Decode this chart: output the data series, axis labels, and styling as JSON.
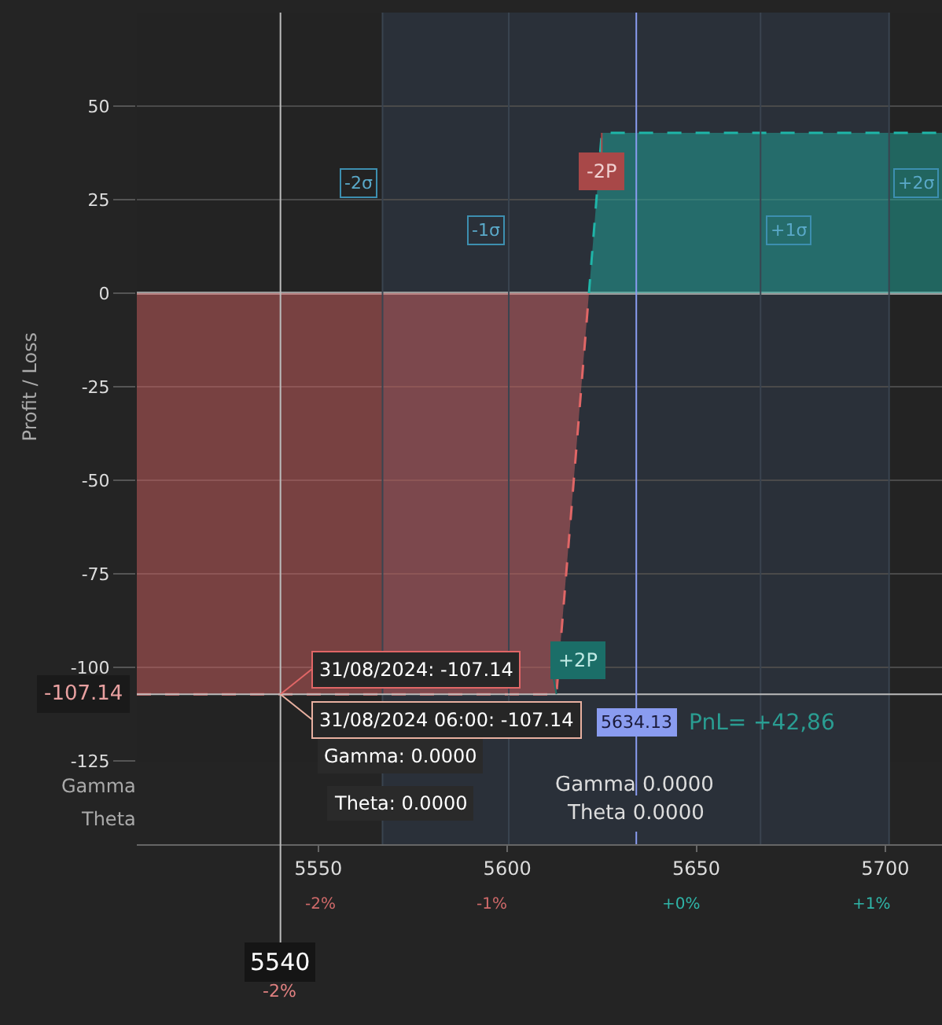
{
  "chart_data": {
    "type": "area",
    "ylabel": "Profit / Loss",
    "series": [
      {
        "color": "#e06666",
        "x": [
          5502,
          5613,
          5621.6
        ],
        "values": [
          -107.14,
          -107.14,
          0
        ]
      },
      {
        "color": "#1fb5a8",
        "x": [
          5621.6,
          5625,
          5715
        ],
        "values": [
          0,
          42.86,
          42.86
        ]
      }
    ],
    "line_style": "dashed",
    "marker": "none",
    "xlim": [
      5502,
      5715
    ],
    "xticks": [
      5550,
      5600,
      5650,
      5700
    ],
    "ylim": [
      -125,
      75
    ],
    "yticks": [
      -125,
      -100,
      -75,
      -50,
      -25,
      0,
      25,
      50
    ],
    "grid": "y",
    "bands": [
      {
        "axis": "x",
        "from": 5567,
        "to": 5701,
        "color": "#2a3039"
      }
    ],
    "ref_lines": [
      {
        "axis": "x",
        "value": 5567,
        "label": "-2σ",
        "color": "#3a4450"
      },
      {
        "axis": "x",
        "value": 5600.4,
        "label": "-1σ",
        "color": "#3a4450"
      },
      {
        "axis": "x",
        "value": 5667,
        "label": "+1σ",
        "color": "#3a4450"
      },
      {
        "axis": "x",
        "value": 5701,
        "label": "+2σ",
        "color": "#3a4450"
      },
      {
        "axis": "x",
        "value": 5540,
        "label": "5540",
        "color": "#bbbbbb"
      },
      {
        "axis": "y",
        "value": -107.14,
        "label": "-107.14",
        "color": "#bbbbbb"
      },
      {
        "axis": "x",
        "value": 5634.13,
        "label": "5634.13",
        "color": "#8a9cf0"
      }
    ],
    "annotations": [
      {
        "text": "-2P",
        "x": 5625,
        "y": 42.86
      },
      {
        "text": "+2P",
        "x": 5613,
        "y": -107.14
      },
      {
        "text": "31/08/2024: -107.14",
        "x": 5540,
        "y": -107.14
      },
      {
        "text": "31/08/2024 06:00: -107.14",
        "x": 5540,
        "y": -107.14
      },
      "-2%",
      "PnL= +42,86",
      "Gamma",
      "Theta",
      "Gamma 0.0000",
      "Theta 0.0000",
      "Gamma: 0.0000",
      "Theta: 0.0000",
      "-2%",
      "-1%",
      "+0%",
      "+1%"
    ]
  }
}
